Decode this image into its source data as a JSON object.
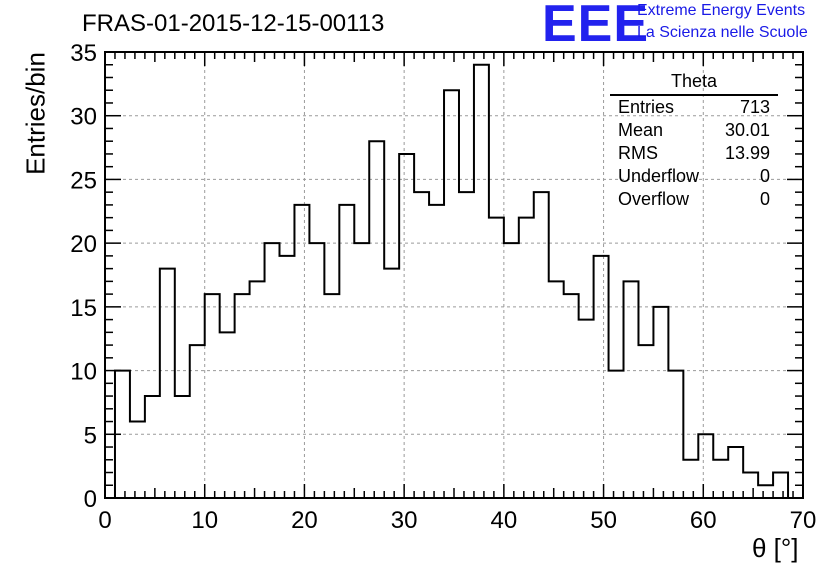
{
  "chart_data": {
    "type": "bar",
    "title": "FRAS-01-2015-12-15-00113",
    "xlabel": "θ [°]",
    "ylabel": "Entries/bin",
    "xlim": [
      0,
      70
    ],
    "ylim": [
      0,
      35
    ],
    "xticks": [
      "0",
      "10",
      "20",
      "30",
      "40",
      "50",
      "60",
      "70"
    ],
    "yticks": [
      "0",
      "5",
      "10",
      "15",
      "20",
      "25",
      "30",
      "35"
    ],
    "grid": true,
    "bin_width": 1.5,
    "bin_start": 1,
    "values": [
      10,
      6,
      8,
      18,
      8,
      12,
      16,
      13,
      16,
      17,
      20,
      19,
      23,
      20,
      16,
      23,
      20,
      28,
      18,
      27,
      24,
      23,
      32,
      24,
      34,
      22,
      20,
      22,
      24,
      17,
      16,
      14,
      19,
      10,
      17,
      12,
      15,
      10,
      3,
      5,
      3,
      4,
      2,
      1,
      2,
      0
    ]
  },
  "stats_box": {
    "name": "Theta",
    "rows": [
      {
        "label": "Entries",
        "value": "713"
      },
      {
        "label": "Mean",
        "value": "30.01"
      },
      {
        "label": "RMS",
        "value": "13.99"
      },
      {
        "label": "Underflow",
        "value": "0"
      },
      {
        "label": "Overflow",
        "value": "0"
      }
    ]
  },
  "logo": {
    "mark": "EEE",
    "line1": "Extreme Energy Events",
    "line2": "La Scienza nelle Scuole",
    "color": "#2222ee"
  }
}
